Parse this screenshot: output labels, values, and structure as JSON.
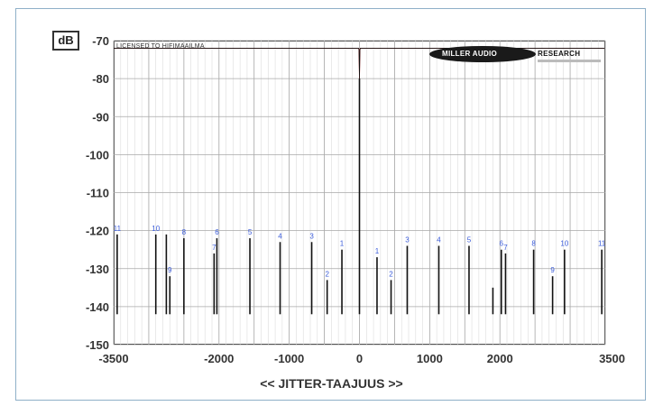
{
  "chart_data": {
    "type": "line",
    "title": "",
    "unit_label": "dB",
    "xlabel": "<< JITTER-TAAJUUS >>",
    "ylabel": "",
    "license_text": "LICENSED TO HIFIMAAILMA",
    "logo": {
      "part1": "MILLER AUDIO",
      "part2": "RESEARCH"
    },
    "xlim": [
      -3500,
      3500
    ],
    "ylim": [
      -150,
      -70
    ],
    "xticks": [
      -3500,
      -2000,
      -1000,
      0,
      1000,
      2000,
      3500
    ],
    "xtick_labels": [
      "-3500",
      "-2000",
      "-1000",
      "0",
      "1000",
      "2000",
      "3500"
    ],
    "yticks": [
      -70,
      -80,
      -90,
      -100,
      -110,
      -120,
      -130,
      -140,
      -150
    ],
    "ytick_labels": [
      "-70",
      "-80",
      "-90",
      "-100",
      "-110",
      "-120",
      "-130",
      "-140",
      "-150"
    ],
    "grid": true,
    "noise_floor": -142,
    "series": [
      {
        "color": "#111111"
      },
      {
        "color": "#d42020"
      }
    ],
    "central_peak": {
      "x": 0,
      "y": -80
    },
    "sidebands": [
      {
        "x": -3450,
        "y": -121,
        "label": "11"
      },
      {
        "x": -2900,
        "y": -121,
        "label": "10"
      },
      {
        "x": -2750,
        "y": -121,
        "label": ""
      },
      {
        "x": -2700,
        "y": -132,
        "label": "9"
      },
      {
        "x": -2500,
        "y": -122,
        "label": "8"
      },
      {
        "x": -2070,
        "y": -126,
        "label": "7"
      },
      {
        "x": -2030,
        "y": -122,
        "label": "6"
      },
      {
        "x": -1560,
        "y": -122,
        "label": "5"
      },
      {
        "x": -1130,
        "y": -123,
        "label": "4"
      },
      {
        "x": -680,
        "y": -123,
        "label": "3"
      },
      {
        "x": -460,
        "y": -133,
        "label": "2"
      },
      {
        "x": -250,
        "y": -125,
        "label": "1"
      },
      {
        "x": 250,
        "y": -127,
        "label": "1"
      },
      {
        "x": 450,
        "y": -133,
        "label": "2"
      },
      {
        "x": 680,
        "y": -124,
        "label": "3"
      },
      {
        "x": 1130,
        "y": -124,
        "label": "4"
      },
      {
        "x": 1560,
        "y": -124,
        "label": "5"
      },
      {
        "x": 1900,
        "y": -135,
        "label": ""
      },
      {
        "x": 2020,
        "y": -125,
        "label": "6"
      },
      {
        "x": 2080,
        "y": -126,
        "label": "7"
      },
      {
        "x": 2480,
        "y": -125,
        "label": "8"
      },
      {
        "x": 2750,
        "y": -132,
        "label": "9"
      },
      {
        "x": 2920,
        "y": -125,
        "label": "10"
      },
      {
        "x": 3450,
        "y": -125,
        "label": "11"
      }
    ]
  }
}
